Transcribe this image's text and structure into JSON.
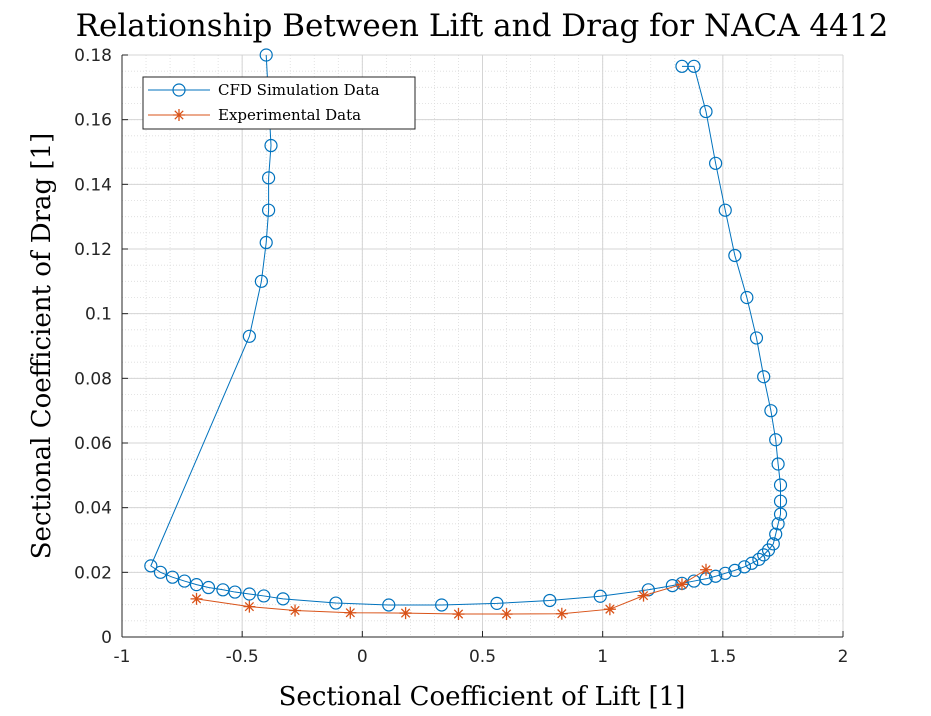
{
  "chart_data": {
    "type": "line",
    "title": "Relationship Between Lift and Drag for NACA 4412",
    "xlabel": "Sectional Coefficient of Lift [1]",
    "ylabel": "Sectional Coefficient of Drag [1]",
    "xlim": [
      -1,
      2
    ],
    "ylim": [
      0,
      0.18
    ],
    "x_ticks": [
      "-1",
      "-0.5",
      "0",
      "0.5",
      "1",
      "1.5",
      "2"
    ],
    "y_ticks": [
      "0",
      "0.02",
      "0.04",
      "0.06",
      "0.08",
      "0.1",
      "0.12",
      "0.14",
      "0.16",
      "0.18"
    ],
    "grid": true,
    "minor_grid": true,
    "legend_position": "top-left",
    "series": [
      {
        "name": "CFD Simulation Data",
        "color": "#0072BD",
        "marker": "circle",
        "x": [
          -0.4,
          -0.38,
          -0.39,
          -0.39,
          -0.4,
          -0.42,
          -0.47,
          -0.88,
          -0.84,
          -0.79,
          -0.74,
          -0.69,
          -0.64,
          -0.58,
          -0.53,
          -0.47,
          -0.41,
          -0.33,
          -0.11,
          0.11,
          0.33,
          0.56,
          0.78,
          0.99,
          1.19,
          1.29,
          1.33,
          1.38,
          1.43,
          1.47,
          1.51,
          1.55,
          1.59,
          1.62,
          1.65,
          1.67,
          1.69,
          1.71,
          1.72,
          1.73,
          1.74,
          1.74,
          1.74,
          1.73,
          1.72,
          1.7,
          1.67,
          1.64,
          1.6,
          1.55,
          1.51,
          1.47,
          1.43,
          1.38,
          1.33
        ],
        "y": [
          0.18,
          0.152,
          0.142,
          0.132,
          0.122,
          0.11,
          0.093,
          0.022,
          0.02,
          0.0185,
          0.0173,
          0.0162,
          0.0153,
          0.0146,
          0.0139,
          0.0133,
          0.0127,
          0.0118,
          0.0105,
          0.0099,
          0.0099,
          0.0104,
          0.0113,
          0.0126,
          0.0146,
          0.0159,
          0.0166,
          0.0173,
          0.018,
          0.0188,
          0.0197,
          0.0206,
          0.0217,
          0.0228,
          0.024,
          0.0254,
          0.0269,
          0.0288,
          0.0318,
          0.035,
          0.038,
          0.042,
          0.047,
          0.0535,
          0.061,
          0.07,
          0.0805,
          0.0925,
          0.105,
          0.118,
          0.132,
          0.1465,
          0.1625,
          0.1765,
          0.1765
        ]
      },
      {
        "name": "Experimental Data",
        "color": "#D95319",
        "marker": "asterisk",
        "x": [
          -0.69,
          -0.47,
          -0.28,
          -0.05,
          0.18,
          0.4,
          0.6,
          0.83,
          1.03,
          1.17,
          1.33,
          1.43
        ],
        "y": [
          0.0118,
          0.0094,
          0.0082,
          0.0075,
          0.0074,
          0.0071,
          0.0071,
          0.0072,
          0.0086,
          0.0128,
          0.0163,
          0.0208
        ]
      }
    ]
  }
}
